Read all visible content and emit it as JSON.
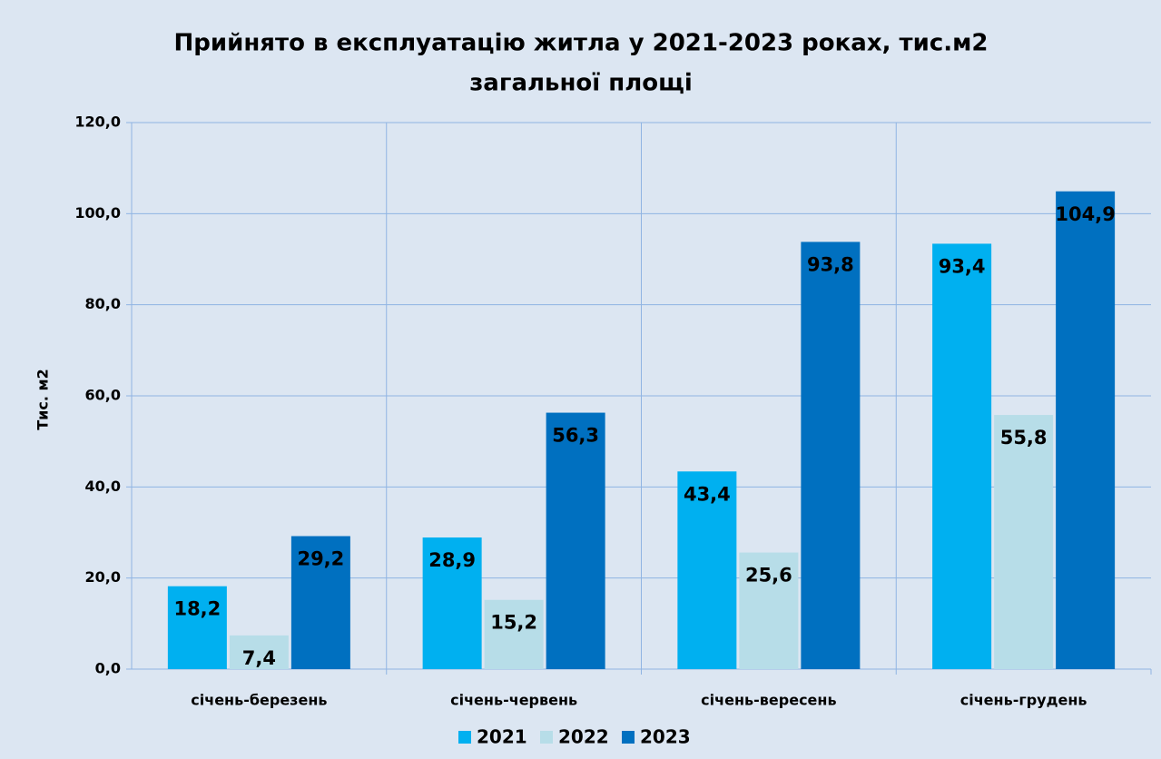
{
  "chart_data": {
    "type": "bar",
    "title": [
      "Прийнято в експлуатацію житла у 2021-2023 роках, тис.м2",
      "загальної площі"
    ],
    "y_label": "Тис. м2",
    "categories": [
      "січень-березень",
      "січень-червень",
      "січень-вересень",
      "січень-грудень"
    ],
    "series": [
      {
        "name": "2021",
        "color": "#00b0f0",
        "values": [
          18.2,
          28.9,
          43.4,
          93.4
        ],
        "value_labels": [
          "18,2",
          "28,9",
          "43,4",
          "93,4"
        ]
      },
      {
        "name": "2022",
        "color": "#b7dde8",
        "values": [
          7.4,
          15.2,
          25.6,
          55.8
        ],
        "value_labels": [
          "7,4",
          "15,2",
          "25,6",
          "55,8"
        ]
      },
      {
        "name": "2023",
        "color": "#0070c0",
        "values": [
          29.2,
          56.3,
          93.8,
          104.9
        ],
        "value_labels": [
          "29,2",
          "56,3",
          "93,8",
          "104,9"
        ]
      }
    ],
    "ylim": [
      0,
      120
    ],
    "yticks": [
      {
        "value": 0,
        "label": "0,0"
      },
      {
        "value": 20,
        "label": "20,0"
      },
      {
        "value": 40,
        "label": "40,0"
      },
      {
        "value": 60,
        "label": "60,0"
      },
      {
        "value": 80,
        "label": "80,0"
      },
      {
        "value": 100,
        "label": "100,0"
      },
      {
        "value": 120,
        "label": "120,0"
      }
    ],
    "grid": true,
    "legend": "bottom"
  }
}
